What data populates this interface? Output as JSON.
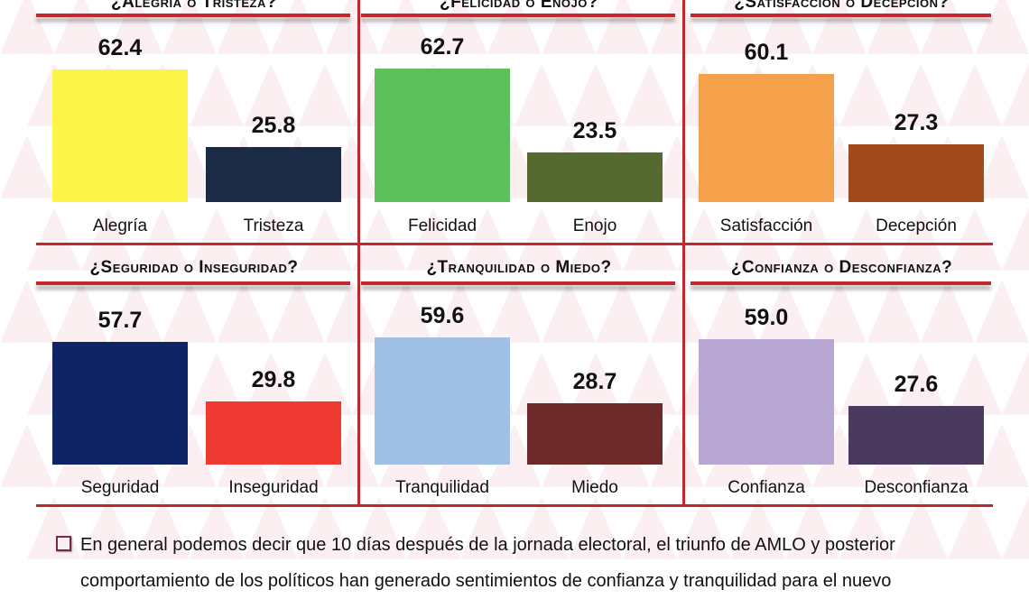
{
  "chart_data": [
    {
      "type": "bar",
      "title": "¿Alegría o Tristeza?",
      "categories": [
        "Alegría",
        "Tristeza"
      ],
      "values": [
        62.4,
        25.8
      ],
      "colors": [
        "#fdf54a",
        "#1b2a45"
      ]
    },
    {
      "type": "bar",
      "title": "¿Felicidad o Enojo?",
      "categories": [
        "Felicidad",
        "Enojo"
      ],
      "values": [
        62.7,
        23.5
      ],
      "colors": [
        "#5cc15c",
        "#56692e"
      ]
    },
    {
      "type": "bar",
      "title": "¿Satisfacción o Decepción?",
      "categories": [
        "Satisfacción",
        "Decepción"
      ],
      "values": [
        60.1,
        27.3
      ],
      "colors": [
        "#f5a04a",
        "#a04a1e"
      ]
    },
    {
      "type": "bar",
      "title": "¿Seguridad o Inseguridad?",
      "categories": [
        "Seguridad",
        "Inseguridad"
      ],
      "values": [
        57.7,
        29.8
      ],
      "colors": [
        "#0e2464",
        "#ee3a33"
      ]
    },
    {
      "type": "bar",
      "title": "¿Tranquilidad o Miedo?",
      "categories": [
        "Tranquilidad",
        "Miedo"
      ],
      "values": [
        59.6,
        28.7
      ],
      "colors": [
        "#a1c0e6",
        "#6e2a2a"
      ]
    },
    {
      "type": "bar",
      "title": "¿Confianza o Desconfianza?",
      "categories": [
        "Confianza",
        "Desconfianza"
      ],
      "values": [
        59.0,
        27.6
      ],
      "colors": [
        "#b9a7d3",
        "#4a3a5f"
      ]
    }
  ],
  "text": {
    "line1": "En general podemos decir que 10 días después de la jornada electoral, el triunfo de AMLO y posterior",
    "line2": "comportamiento de los políticos han generado sentimientos de confianza y tranquilidad para el nuevo"
  }
}
